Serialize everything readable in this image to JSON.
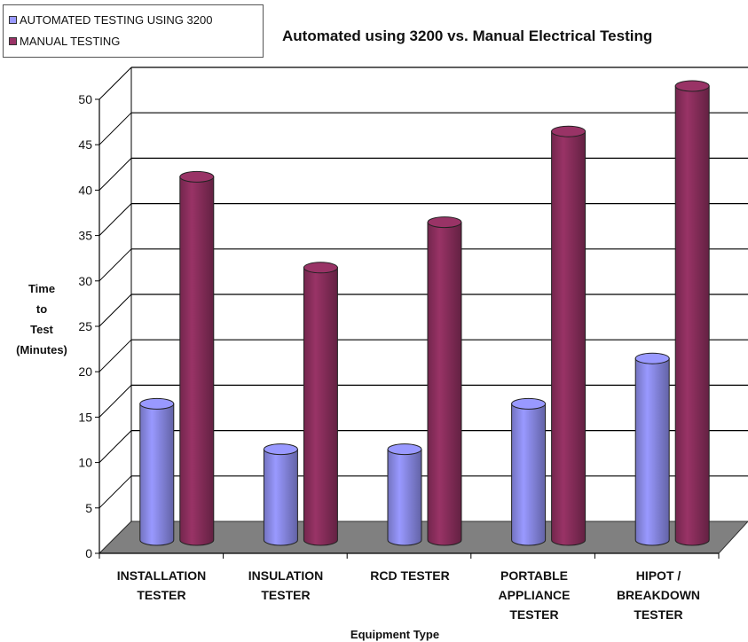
{
  "chart_data": {
    "type": "bar",
    "title": "Automated using 3200 vs. Manual Electrical Testing",
    "xlabel": "Equipment Type",
    "ylabel_lines": [
      "Time",
      "to",
      "Test",
      "(Minutes)"
    ],
    "categories": [
      "INSTALLATION\nTESTER",
      "INSULATION\nTESTER",
      "RCD TESTER",
      "PORTABLE\nAPPLIANCE\nTESTER",
      "HIPOT /\nBREAKDOWN\nTESTER"
    ],
    "series": [
      {
        "name": "AUTOMATED TESTING USING 3200",
        "color": "#9999ff",
        "values": [
          15,
          10,
          10,
          15,
          20
        ]
      },
      {
        "name": "MANUAL TESTING",
        "color": "#993366",
        "values": [
          40,
          30,
          35,
          45,
          50
        ]
      }
    ],
    "ylim": [
      0,
      50
    ],
    "yticks": [
      "0",
      "5",
      "10",
      "15",
      "20",
      "25",
      "30",
      "35",
      "40",
      "45",
      "50"
    ],
    "grid": true,
    "legend_position": "top-left",
    "bar_shape": "3d-cylinder",
    "floor_color": "#808080"
  }
}
